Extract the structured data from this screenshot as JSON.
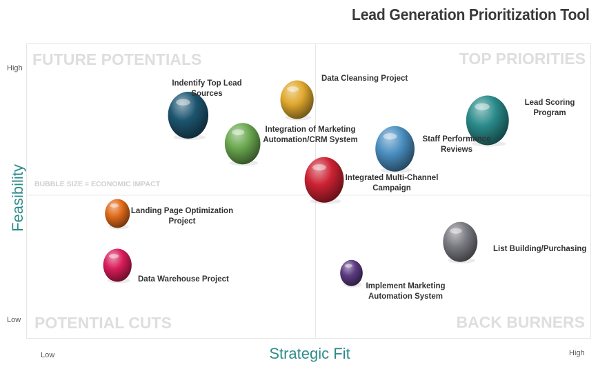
{
  "title": "Lead Generation Prioritization Tool",
  "chart_data": {
    "type": "scatter",
    "title": "Lead Generation Prioritization Tool",
    "xlabel": "Strategic Fit",
    "ylabel": "Feasibility",
    "xlim": [
      0,
      100
    ],
    "ylim": [
      0,
      100
    ],
    "x_ticks": {
      "low": "Low",
      "high": "High"
    },
    "y_ticks": {
      "low": "Low",
      "high": "High"
    },
    "quadrants": {
      "top_left": "FUTURE POTENTIALS",
      "top_right": "TOP PRIORITIES",
      "bottom_left": "POTENTIAL CUTS",
      "bottom_right": "BACK BURNERS"
    },
    "size_note": "BUBBLE SIZE = ECONOMIC IMPACT",
    "points": [
      {
        "label": "Indentify Top Lead Sources",
        "x": 29,
        "y": 80,
        "size": 34,
        "color": "#1c5570"
      },
      {
        "label": "Data Cleansing Project",
        "x": 49,
        "y": 86,
        "size": 28,
        "color": "#e0a82e"
      },
      {
        "label": "Integration of Marketing Automation/CRM System",
        "x": 39,
        "y": 69,
        "size": 30,
        "color": "#6aa84f"
      },
      {
        "label": "Lead Scoring Program",
        "x": 84,
        "y": 78,
        "size": 36,
        "color": "#2a8a8a"
      },
      {
        "label": "Staff Performance Reviews",
        "x": 67,
        "y": 67,
        "size": 33,
        "color": "#4a8fc0"
      },
      {
        "label": "Integrated Multi-Channel Campaign",
        "x": 54,
        "y": 55,
        "size": 33,
        "color": "#cc2233"
      },
      {
        "label": "Landing Page Optimization Project",
        "x": 16,
        "y": 42,
        "size": 21,
        "color": "#e06a1a"
      },
      {
        "label": "List Building/Purchasing",
        "x": 79,
        "y": 31,
        "size": 29,
        "color": "#7a7a82"
      },
      {
        "label": "Data Warehouse Project",
        "x": 16,
        "y": 22,
        "size": 24,
        "color": "#d81c5a"
      },
      {
        "label": "Implement Marketing Automation System",
        "x": 59,
        "y": 19,
        "size": 19,
        "color": "#5a3a80"
      }
    ]
  }
}
